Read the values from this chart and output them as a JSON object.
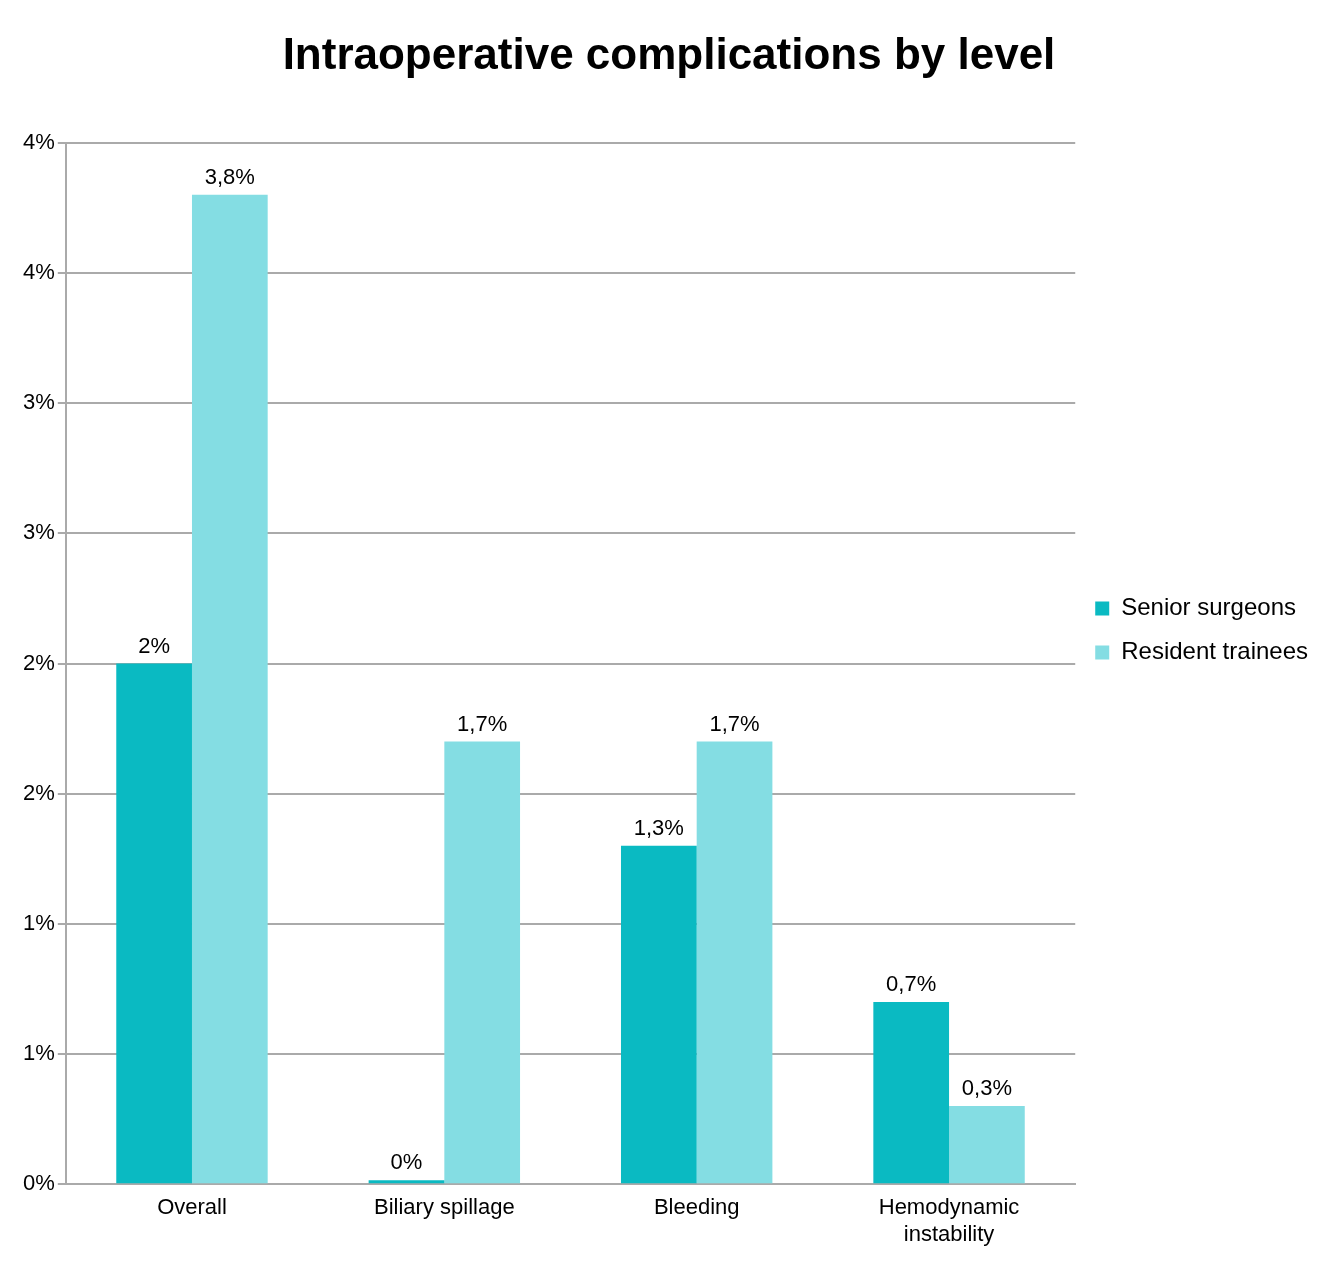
{
  "chart_data": {
    "type": "bar",
    "title": "Intraoperative complications by level",
    "categories": [
      "Overall",
      "Biliary spillage",
      "Bleeding",
      "Hemodynamic instability"
    ],
    "series": [
      {
        "name": "Senior surgeons",
        "color": "#0abac2",
        "values": [
          2,
          0,
          1.3,
          0.7
        ],
        "value_labels": [
          "2%",
          "0%",
          "1,3%",
          "0,7%"
        ]
      },
      {
        "name": "Resident trainees",
        "color": "#84dde3",
        "values": [
          3.8,
          1.7,
          1.7,
          0.3
        ],
        "value_labels": [
          "3,8%",
          "1,7%",
          "1,7%",
          "0,3%"
        ]
      }
    ],
    "ylim": [
      0,
      4
    ],
    "yticks": [
      {
        "value": 0,
        "label": "0%"
      },
      {
        "value": 0.5,
        "label": "1%"
      },
      {
        "value": 1,
        "label": "1%"
      },
      {
        "value": 1.5,
        "label": "2%"
      },
      {
        "value": 2,
        "label": "2%"
      },
      {
        "value": 2.5,
        "label": "3%"
      },
      {
        "value": 3,
        "label": "3%"
      },
      {
        "value": 3.5,
        "label": "4%"
      },
      {
        "value": 4,
        "label": "4%"
      }
    ],
    "grid": "y",
    "legend": "right"
  }
}
